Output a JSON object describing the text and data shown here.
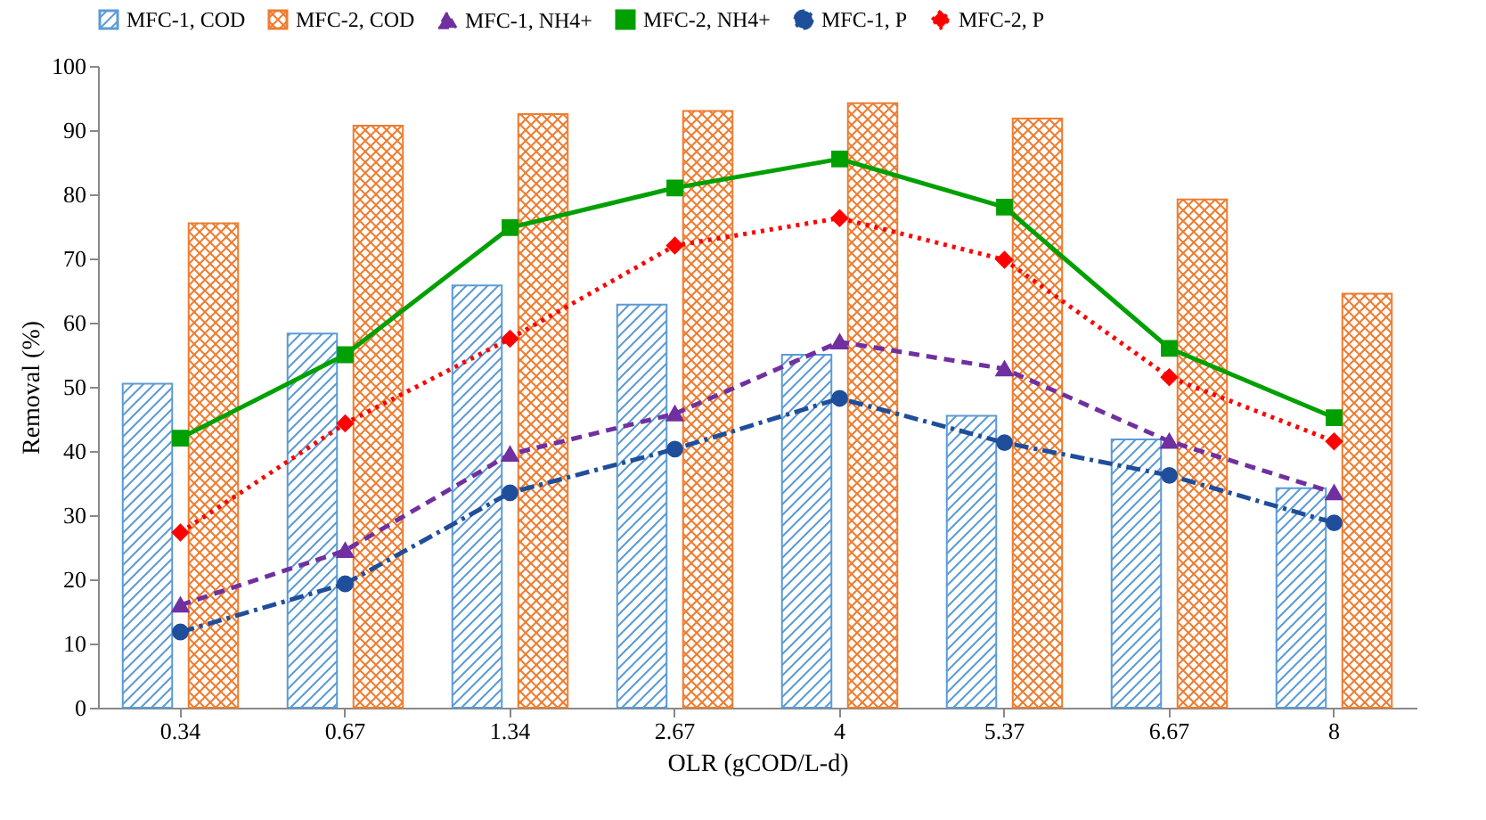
{
  "chart_data": {
    "type": "bar",
    "xlabel": "OLR (gCOD/L-d)",
    "ylabel": "Removal (%)",
    "categories": [
      "0.34",
      "0.67",
      "1.34",
      "2.67",
      "4",
      "5.37",
      "6.67",
      "8"
    ],
    "ylim": [
      0,
      100
    ],
    "yticks": [
      0,
      10,
      20,
      30,
      40,
      50,
      60,
      70,
      80,
      90,
      100
    ],
    "grid": false,
    "legend": "top",
    "series": [
      {
        "name": "MFC-1, COD",
        "color": "#5b9bd5",
        "values": [
          50.5,
          58.3,
          65.8,
          62.8,
          55.0,
          45.5,
          41.8,
          34.2
        ]
      },
      {
        "name": "MFC-2, COD",
        "color": "#ed7d31",
        "values": [
          75.5,
          90.7,
          92.5,
          93.0,
          94.2,
          91.8,
          79.2,
          64.5
        ]
      },
      {
        "name": "MFC-1, NH4+",
        "type": "line",
        "color": "#7030a0",
        "marker": "triangle",
        "line_style": "dashed",
        "values": [
          16.0,
          24.5,
          39.5,
          45.8,
          57.0,
          52.8,
          41.5,
          33.5
        ]
      },
      {
        "name": "MFC-2, NH4+",
        "type": "line",
        "color": "#00a000",
        "marker": "square",
        "line_style": "solid",
        "values": [
          42.0,
          55.0,
          74.8,
          81.0,
          85.5,
          78.0,
          56.0,
          45.2
        ]
      },
      {
        "name": "MFC-1, P",
        "type": "line",
        "color": "#1f4e9a",
        "marker": "circle",
        "line_style": "dashdot",
        "values": [
          11.8,
          19.3,
          33.5,
          40.3,
          48.2,
          41.3,
          36.2,
          28.8
        ]
      },
      {
        "name": "MFC-2, P",
        "type": "line",
        "color": "#ff0000",
        "marker": "diamond",
        "line_style": "dotted",
        "values": [
          27.3,
          44.3,
          57.5,
          72.0,
          76.3,
          69.8,
          51.5,
          41.5
        ]
      }
    ]
  }
}
